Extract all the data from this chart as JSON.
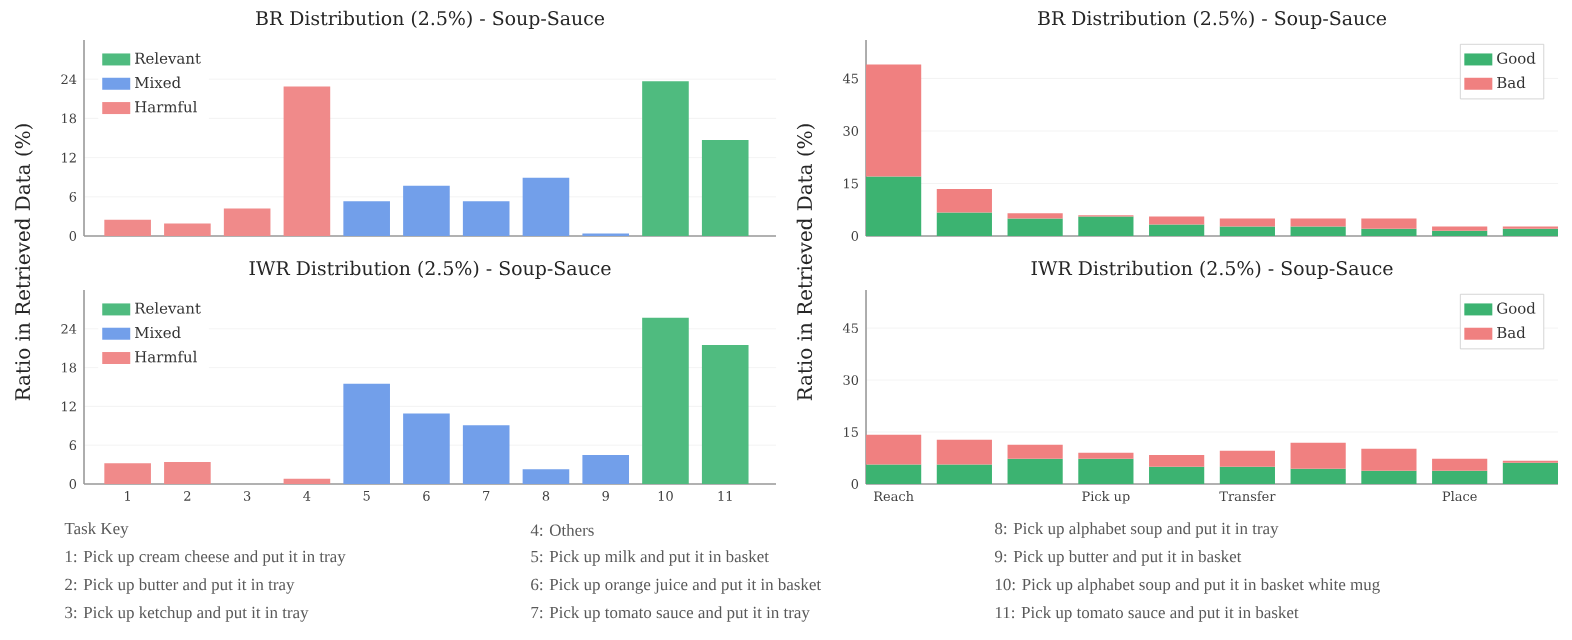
{
  "chart_data": [
    {
      "type": "bar",
      "title": "BR Distribution (2.5%) - Soup-Sauce",
      "ylabel": "Ratio in Retrieved Data (%)",
      "categories": [
        null,
        null,
        null,
        null,
        null,
        null,
        null,
        null,
        null,
        null,
        null
      ],
      "stacked": true,
      "series": [
        {
          "name": "Relevant",
          "color": "#4fbb7f",
          "values": [
            null,
            null,
            null,
            null,
            null,
            null,
            null,
            null,
            null,
            23.7,
            14.7
          ]
        },
        {
          "name": "Mixed",
          "color": "#729fea",
          "values": [
            null,
            null,
            null,
            null,
            5.3,
            7.7,
            5.3,
            8.9,
            0.4,
            null,
            null
          ]
        },
        {
          "name": "Harmful",
          "color": "#f08a8a",
          "values": [
            2.5,
            1.9,
            4.2,
            22.9,
            null,
            null,
            null,
            null,
            null,
            null,
            null
          ]
        }
      ],
      "ylim": [
        0,
        30
      ],
      "yticks": [
        0,
        6,
        12,
        18,
        24
      ],
      "grid": "y",
      "legend": "top left",
      "tick_labels": "y"
    },
    {
      "type": "bar",
      "title": "IWR Distribution (2.5%) - Soup-Sauce",
      "categories": [
        "1",
        "2",
        "3",
        "4",
        "5",
        "6",
        "7",
        "8",
        "9",
        "10",
        "11"
      ],
      "stacked": true,
      "series": [
        {
          "name": "Relevant",
          "color": "#4fbb7f",
          "values": [
            null,
            null,
            null,
            null,
            null,
            null,
            null,
            null,
            null,
            25.7,
            21.5
          ]
        },
        {
          "name": "Mixed",
          "color": "#729fea",
          "values": [
            null,
            null,
            null,
            null,
            15.5,
            10.9,
            9.1,
            2.3,
            4.5,
            null,
            null
          ]
        },
        {
          "name": "Harmful",
          "color": "#f08a8a",
          "values": [
            3.2,
            3.4,
            0,
            0.8,
            null,
            null,
            null,
            null,
            null,
            null,
            null
          ]
        }
      ],
      "ylim": [
        0,
        30
      ],
      "yticks": [
        0,
        6,
        12,
        18,
        24
      ],
      "grid": "y",
      "legend": "top left",
      "annotations": [
        "Task Key",
        "1: Pick up cream cheese and put it in tray",
        "2: Pick up butter and put it in tray",
        "3: Pick up ketchup and put it in tray",
        "4: Others",
        "5: Pick up milk and put it in basket",
        "6: Pick up orange juice and put it in basket",
        "7: Pick up tomato sauce and put it in tray",
        "8: Pick up alphabet soup and put it in tray",
        "9: Pick up butter and put it in basket",
        "10: Pick up alphabet soup and put it in basket white mug",
        "11: Pick up tomato sauce and put it in basket"
      ]
    },
    {
      "type": "bar",
      "title": "BR Distribution (2.5%) - Soup-Sauce",
      "ylabel": "Ratio in Retrieved Data (%)",
      "categories": [
        null,
        null,
        null,
        null,
        null,
        null,
        null,
        null,
        null,
        null
      ],
      "stacked": true,
      "series": [
        {
          "name": "Good",
          "color": "#3cb371",
          "values": [
            17.0,
            6.7,
            5.0,
            5.6,
            3.3,
            2.7,
            2.7,
            2.1,
            1.5,
            2.1
          ]
        },
        {
          "name": "Bad",
          "color": "#f08080",
          "values": [
            32.0,
            6.7,
            1.5,
            0.3,
            2.3,
            2.3,
            2.3,
            2.9,
            1.2,
            0.6
          ]
        }
      ],
      "ylim": [
        0,
        56
      ],
      "yticks": [
        0,
        15,
        30,
        45
      ],
      "grid": "y",
      "legend": "top right",
      "tick_labels": "y"
    },
    {
      "type": "bar",
      "title": "IWR Distribution (2.5%) - Soup-Sauce",
      "categories": [
        "Reach",
        null,
        null,
        "Pick up",
        null,
        "Transfer",
        null,
        null,
        "Place",
        null
      ],
      "stacked": true,
      "series": [
        {
          "name": "Good",
          "color": "#3cb371",
          "values": [
            5.6,
            5.6,
            7.3,
            7.3,
            5.0,
            5.0,
            4.4,
            3.8,
            3.8,
            6.1
          ]
        },
        {
          "name": "Bad",
          "color": "#f08080",
          "values": [
            8.6,
            7.2,
            4.0,
            1.7,
            3.4,
            4.6,
            7.5,
            6.4,
            3.5,
            0.6
          ]
        }
      ],
      "ylim": [
        0,
        56
      ],
      "yticks": [
        0,
        15,
        30,
        45
      ],
      "grid": "y",
      "legend": "top right"
    }
  ]
}
